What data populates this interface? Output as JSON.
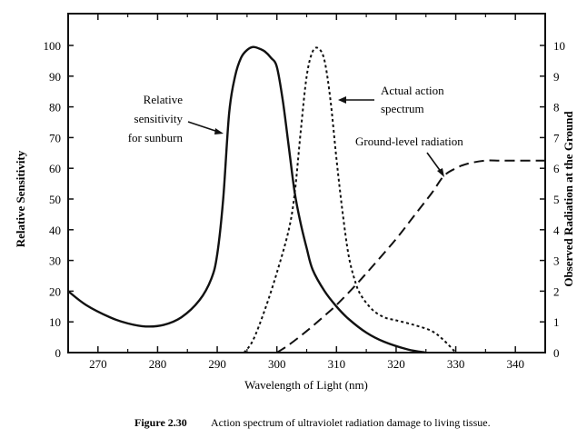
{
  "chart_data": {
    "type": "line",
    "caption_label": "Figure 2.30",
    "caption_text": "Action spectrum of ultraviolet radiation damage to living tissue.",
    "xlabel": "Wavelength of Light (nm)",
    "ylabel": "Relative Sensitivity",
    "y2label": "Observed Radiation at the Ground",
    "xlim": [
      265,
      345
    ],
    "ylim": [
      0,
      105
    ],
    "y2lim": [
      0,
      10.5
    ],
    "xticks": [
      270,
      280,
      290,
      300,
      310,
      320,
      330,
      340
    ],
    "yticks": [
      0,
      10,
      20,
      30,
      40,
      50,
      60,
      70,
      80,
      90,
      100
    ],
    "y2ticks": [
      0,
      1,
      2,
      3,
      4,
      5,
      6,
      7,
      8,
      9,
      10
    ],
    "grid": false,
    "series": [
      {
        "name": "Relative sensitivity for sunburn",
        "axis": "left",
        "style": "solid",
        "x": [
          265,
          268,
          272,
          275,
          278,
          281,
          284,
          287,
          289,
          290,
          291,
          292,
          293,
          294,
          295,
          296,
          297,
          298,
          299,
          300,
          301,
          302,
          303,
          304,
          305,
          306,
          308,
          310,
          312,
          315,
          318,
          322,
          325
        ],
        "y": [
          20,
          15.5,
          11.5,
          9.5,
          8.5,
          9,
          11.5,
          17,
          24,
          32,
          50,
          78,
          90,
          96,
          98.5,
          99.5,
          99,
          98,
          96,
          93,
          82,
          67,
          52,
          42,
          34,
          27,
          20,
          15,
          11,
          6.5,
          3.5,
          1,
          0
        ]
      },
      {
        "name": "Actual action spectrum",
        "axis": "left",
        "style": "dotted",
        "x": [
          294.5,
          296,
          298,
          300,
          302,
          303,
          304,
          305,
          306,
          307,
          308,
          309,
          310,
          311,
          312,
          313,
          314,
          316,
          318,
          320,
          323,
          326,
          328,
          330
        ],
        "y": [
          0,
          4,
          14,
          26,
          40,
          52,
          72,
          90,
          98,
          99,
          95,
          82,
          63,
          46,
          32,
          24,
          19,
          14,
          11.5,
          10.5,
          9,
          7,
          4,
          0
        ]
      },
      {
        "name": "Ground-level radiation",
        "axis": "right",
        "style": "dashed",
        "x": [
          300,
          302,
          305,
          308,
          310,
          313,
          316,
          320,
          323,
          326,
          328,
          330,
          332,
          335,
          338,
          345
        ],
        "y": [
          0,
          0.25,
          0.7,
          1.2,
          1.55,
          2.15,
          2.8,
          3.7,
          4.45,
          5.2,
          5.75,
          6.0,
          6.15,
          6.25,
          6.25,
          6.25
        ]
      }
    ],
    "annotations": {
      "sunburn": [
        "Relative",
        "sensitivity",
        "for sunburn"
      ],
      "action": [
        "Actual action",
        "spectrum"
      ],
      "ground": [
        "Ground-level radiation"
      ]
    }
  }
}
